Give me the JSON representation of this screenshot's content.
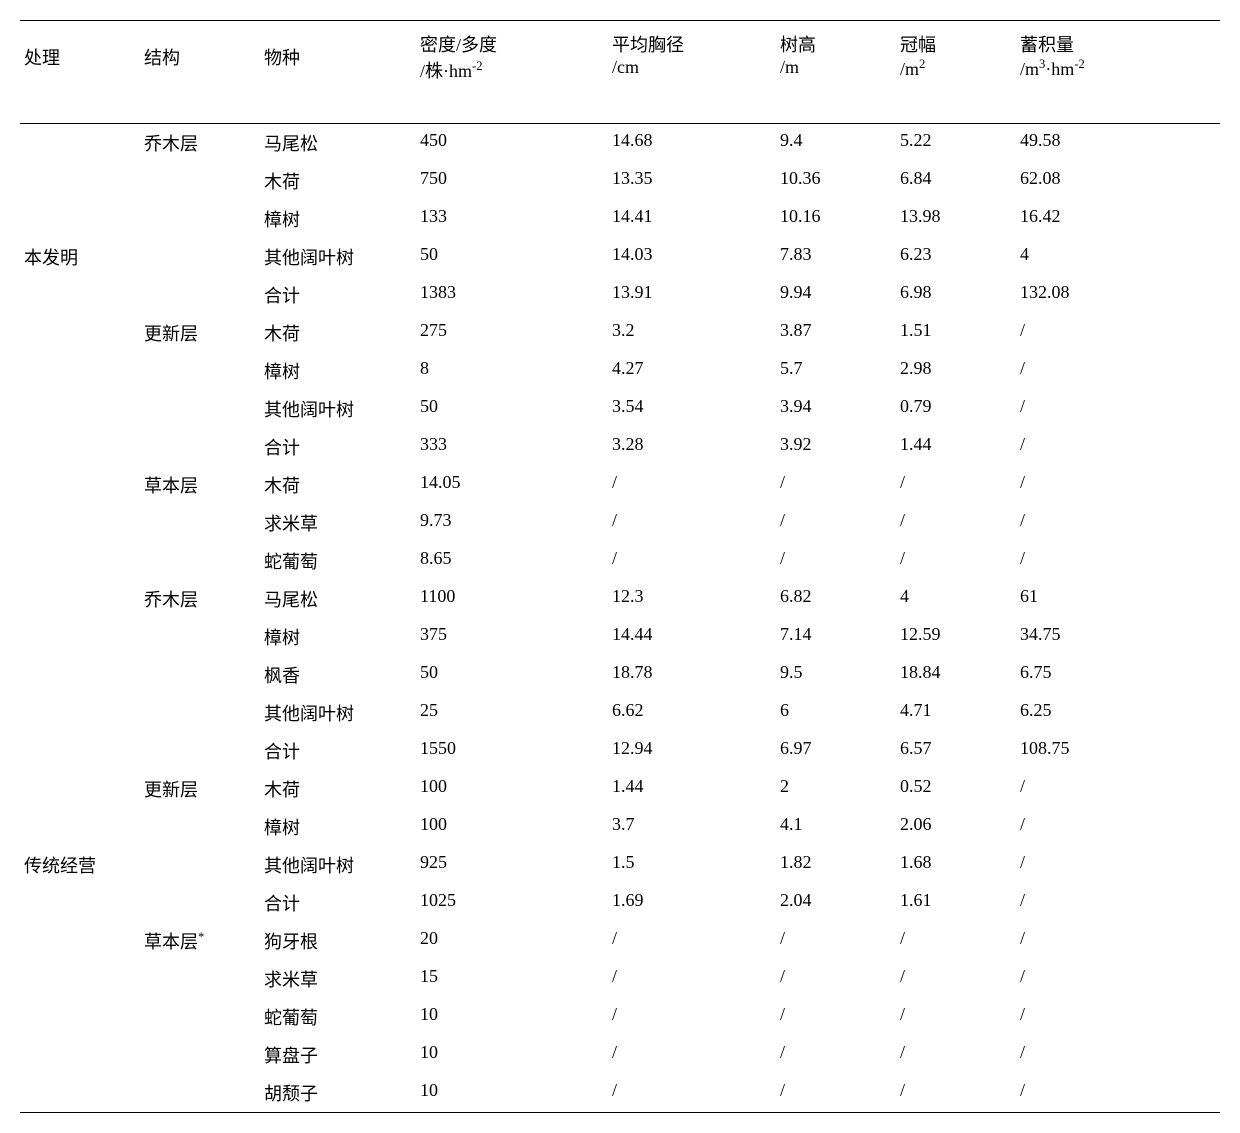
{
  "headers": {
    "treatment": "处理",
    "structure": "结构",
    "species": "物种",
    "density_main": "密度/多度",
    "density_sub": "/株·hm",
    "density_sup": "-2",
    "dbh_main": "平均胸径",
    "dbh_sub": "/cm",
    "height_main": "树高",
    "height_sub": "/m",
    "crown_main": "冠幅",
    "crown_sub": "/m",
    "crown_sup": "2",
    "volume_main": "蓄积量",
    "volume_sub": "/m",
    "volume_sup1": "3",
    "volume_mid": "·hm",
    "volume_sup2": "-2"
  },
  "treatments": {
    "t1": "本发明",
    "t2": "传统经营"
  },
  "structures": {
    "s1": "乔木层",
    "s2": "更新层",
    "s3": "草本层",
    "s4": "乔木层",
    "s5": "更新层",
    "s6": "草本层",
    "s6_star": "*"
  },
  "rows": [
    {
      "species": "马尾松",
      "density": "450",
      "dbh": "14.68",
      "height": "9.4",
      "crown": "5.22",
      "volume": "49.58"
    },
    {
      "species": "木荷",
      "density": "750",
      "dbh": "13.35",
      "height": "10.36",
      "crown": "6.84",
      "volume": "62.08"
    },
    {
      "species": "樟树",
      "density": "133",
      "dbh": "14.41",
      "height": "10.16",
      "crown": "13.98",
      "volume": "16.42"
    },
    {
      "species": "其他阔叶树",
      "density": "50",
      "dbh": "14.03",
      "height": "7.83",
      "crown": "6.23",
      "volume": "4"
    },
    {
      "species": "合计",
      "density": "1383",
      "dbh": "13.91",
      "height": "9.94",
      "crown": "6.98",
      "volume": "132.08"
    },
    {
      "species": "木荷",
      "density": "275",
      "dbh": "3.2",
      "height": "3.87",
      "crown": "1.51",
      "volume": "/"
    },
    {
      "species": "樟树",
      "density": "8",
      "dbh": "4.27",
      "height": "5.7",
      "crown": "2.98",
      "volume": "/"
    },
    {
      "species": "其他阔叶树",
      "density": "50",
      "dbh": "3.54",
      "height": "3.94",
      "crown": "0.79",
      "volume": "/"
    },
    {
      "species": "合计",
      "density": "333",
      "dbh": "3.28",
      "height": "3.92",
      "crown": "1.44",
      "volume": "/"
    },
    {
      "species": "木荷",
      "density": "14.05",
      "dbh": "/",
      "height": "/",
      "crown": "/",
      "volume": "/"
    },
    {
      "species": "求米草",
      "density": "9.73",
      "dbh": "/",
      "height": "/",
      "crown": "/",
      "volume": "/"
    },
    {
      "species": "蛇葡萄",
      "density": "8.65",
      "dbh": "/",
      "height": "/",
      "crown": "/",
      "volume": "/"
    },
    {
      "species": "马尾松",
      "density": "1100",
      "dbh": "12.3",
      "height": "6.82",
      "crown": "4",
      "volume": "61"
    },
    {
      "species": "樟树",
      "density": "375",
      "dbh": "14.44",
      "height": "7.14",
      "crown": "12.59",
      "volume": "34.75"
    },
    {
      "species": "枫香",
      "density": "50",
      "dbh": "18.78",
      "height": "9.5",
      "crown": "18.84",
      "volume": "6.75"
    },
    {
      "species": "其他阔叶树",
      "density": "25",
      "dbh": "6.62",
      "height": "6",
      "crown": "4.71",
      "volume": "6.25"
    },
    {
      "species": "合计",
      "density": "1550",
      "dbh": "12.94",
      "height": "6.97",
      "crown": "6.57",
      "volume": "108.75"
    },
    {
      "species": "木荷",
      "density": "100",
      "dbh": "1.44",
      "height": "2",
      "crown": "0.52",
      "volume": "/"
    },
    {
      "species": "樟树",
      "density": "100",
      "dbh": "3.7",
      "height": "4.1",
      "crown": "2.06",
      "volume": "/"
    },
    {
      "species": "其他阔叶树",
      "density": "925",
      "dbh": "1.5",
      "height": "1.82",
      "crown": "1.68",
      "volume": "/"
    },
    {
      "species": "合计",
      "density": "1025",
      "dbh": "1.69",
      "height": "2.04",
      "crown": "1.61",
      "volume": "/"
    },
    {
      "species": "狗牙根",
      "density": "20",
      "dbh": "/",
      "height": "/",
      "crown": "/",
      "volume": "/"
    },
    {
      "species": "求米草",
      "density": "15",
      "dbh": "/",
      "height": "/",
      "crown": "/",
      "volume": "/"
    },
    {
      "species": "蛇葡萄",
      "density": "10",
      "dbh": "/",
      "height": "/",
      "crown": "/",
      "volume": "/"
    },
    {
      "species": "算盘子",
      "density": "10",
      "dbh": "/",
      "height": "/",
      "crown": "/",
      "volume": "/"
    },
    {
      "species": "胡颓子",
      "density": "10",
      "dbh": "/",
      "height": "/",
      "crown": "/",
      "volume": "/"
    }
  ]
}
